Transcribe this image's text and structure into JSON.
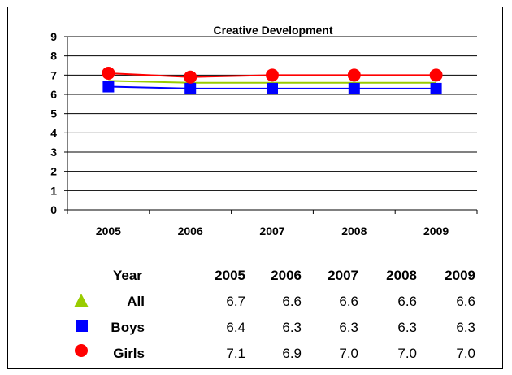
{
  "chart_data": {
    "type": "line",
    "title": "Creative Development",
    "categories": [
      "2005",
      "2006",
      "2007",
      "2008",
      "2009"
    ],
    "ylim": [
      0,
      9
    ],
    "yticks": [
      0,
      1,
      2,
      3,
      4,
      5,
      6,
      7,
      8,
      9
    ],
    "grid": true,
    "series": [
      {
        "name": "All",
        "values": [
          6.7,
          6.6,
          6.6,
          6.6,
          6.6
        ],
        "color": "#99CC00",
        "marker": "triangle"
      },
      {
        "name": "Boys",
        "values": [
          6.4,
          6.3,
          6.3,
          6.3,
          6.3
        ],
        "color": "#0000FF",
        "marker": "square"
      },
      {
        "name": "Girls",
        "values": [
          7.1,
          6.9,
          7.0,
          7.0,
          7.0
        ],
        "color": "#FF0000",
        "marker": "circle"
      }
    ]
  },
  "table": {
    "header_label": "Year",
    "years": [
      "2005",
      "2006",
      "2007",
      "2008",
      "2009"
    ],
    "rows": [
      {
        "name": "All",
        "values": [
          "6.7",
          "6.6",
          "6.6",
          "6.6",
          "6.6"
        ]
      },
      {
        "name": "Boys",
        "values": [
          "6.4",
          "6.3",
          "6.3",
          "6.3",
          "6.3"
        ]
      },
      {
        "name": "Girls",
        "values": [
          "7.1",
          "6.9",
          "7.0",
          "7.0",
          "7.0"
        ]
      }
    ]
  }
}
